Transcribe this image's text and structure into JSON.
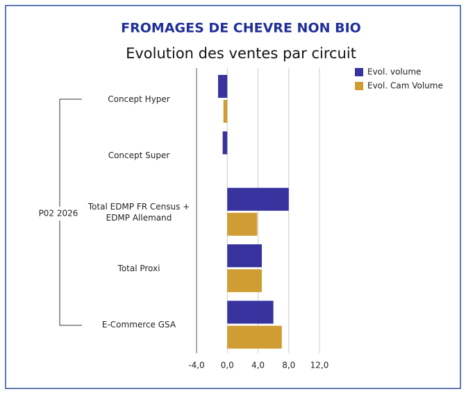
{
  "chart_data": {
    "type": "hbar",
    "title": "FROMAGES DE CHEVRE NON BIO",
    "subtitle": "Evolution des ventes par circuit",
    "group_label": "P02 2026",
    "categories": [
      "Concept Hyper",
      "Concept Super",
      "Total EDMP FR Census + EDMP Allemand",
      "Total Proxi",
      "E-Commerce GSA"
    ],
    "series": [
      {
        "name": "Evol. volume",
        "color": "#38339e",
        "values": [
          -1.2,
          -0.6,
          8.0,
          4.5,
          6.0
        ]
      },
      {
        "name": "Evol. Cam Volume",
        "color": "#d09d35",
        "values": [
          -0.5,
          null,
          3.9,
          4.5,
          7.1
        ]
      }
    ],
    "xlim": [
      -4,
      12
    ],
    "xticks": [
      {
        "value": -4,
        "label": "-4,0"
      },
      {
        "value": 0,
        "label": "0,0"
      },
      {
        "value": 4,
        "label": "4,0"
      },
      {
        "value": 8,
        "label": "8,0"
      },
      {
        "value": 12,
        "label": "12,0"
      }
    ],
    "grid": true,
    "legend": "top-right"
  }
}
